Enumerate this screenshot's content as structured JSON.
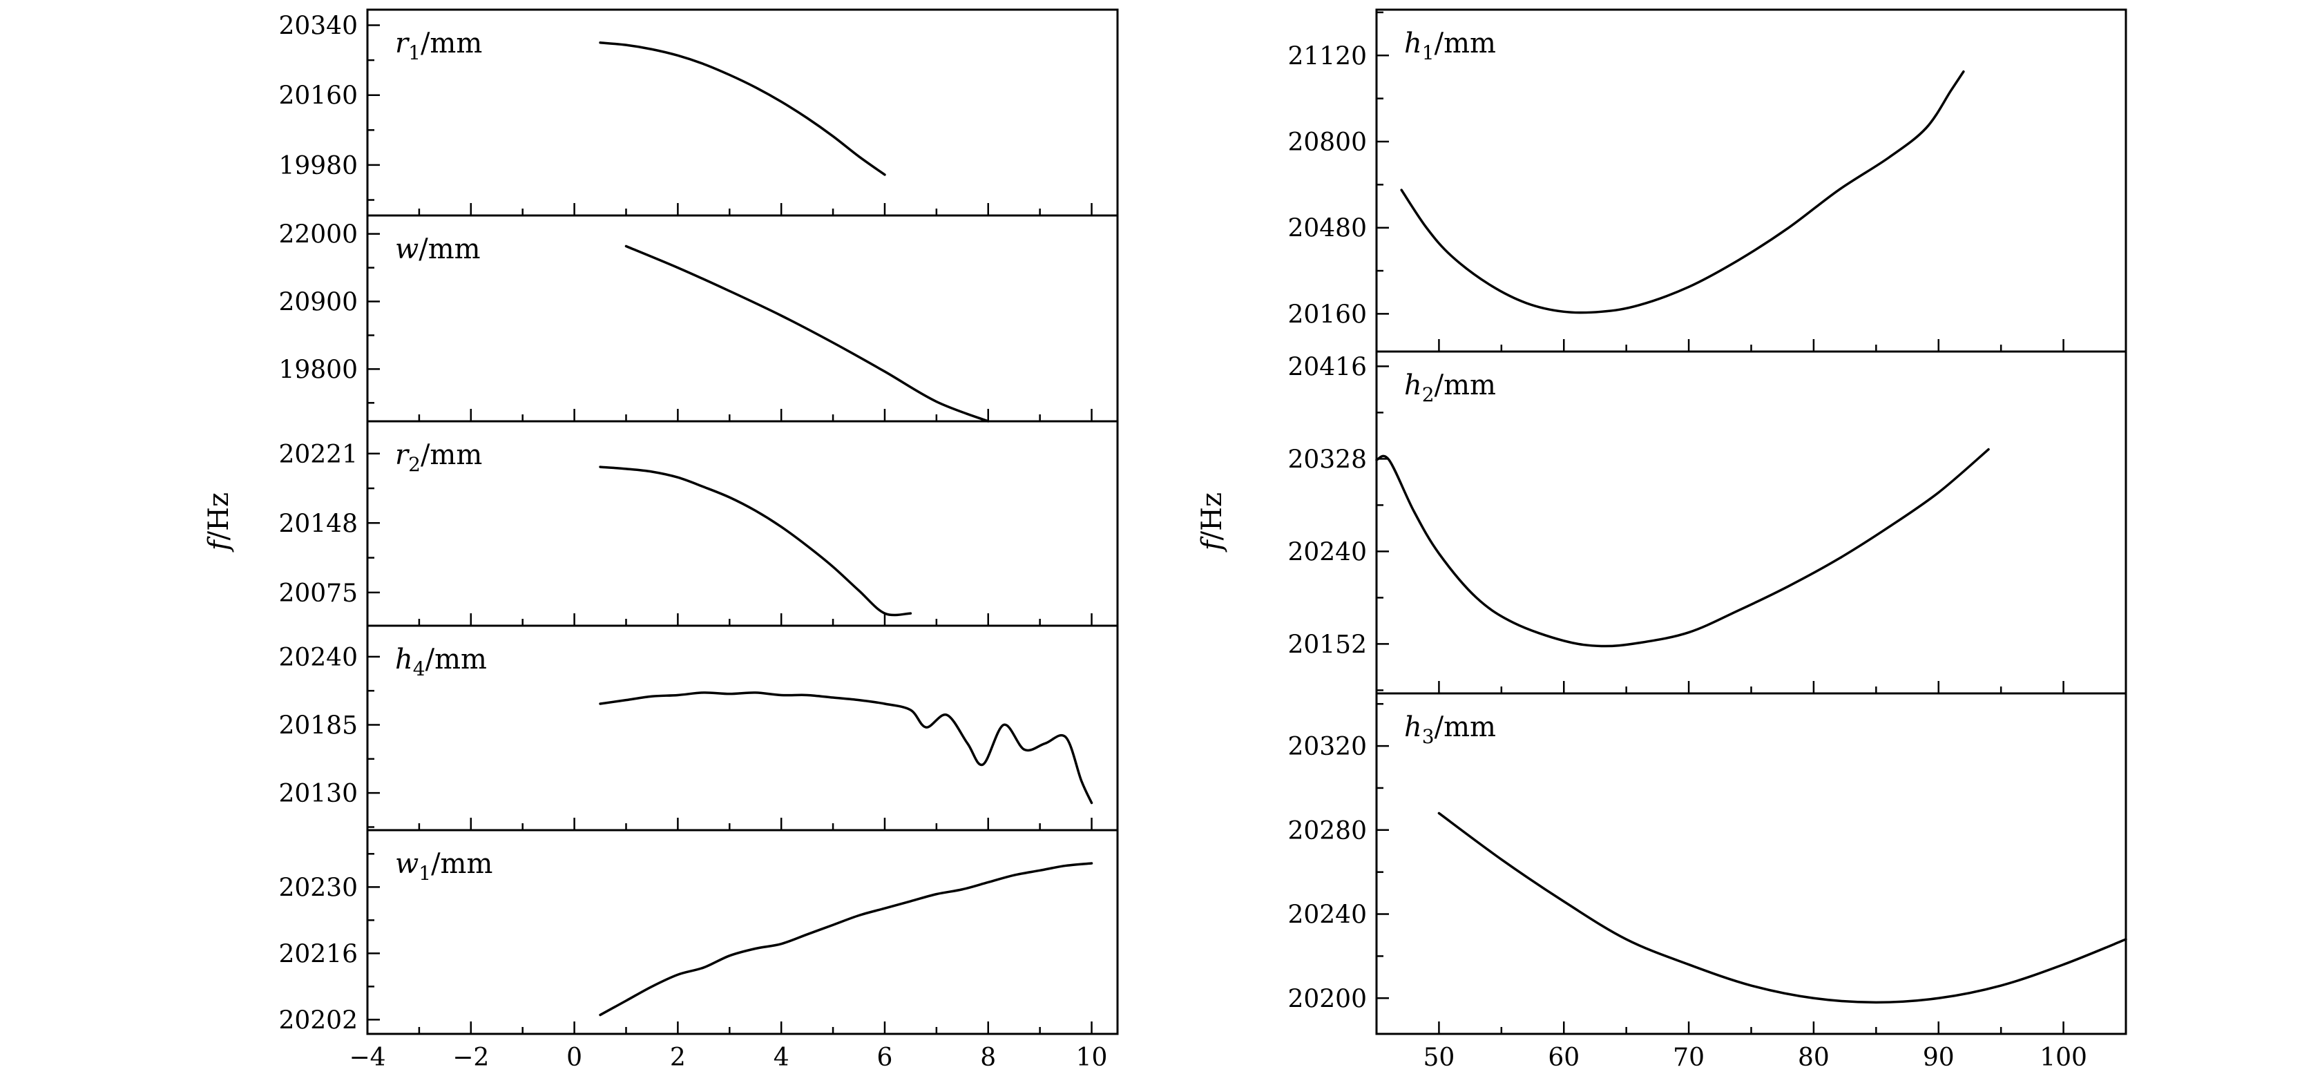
{
  "chart_data": [
    {
      "type": "line",
      "name": "r1",
      "label_symbol": "r",
      "label_sub": "1",
      "label_unit": "/mm",
      "xlim": [
        -4,
        10.5
      ],
      "ylim": [
        19850,
        20380
      ],
      "yticks": [
        19980,
        20160,
        20340
      ],
      "ytick_labels": [
        "19980",
        "20160",
        "20340"
      ],
      "x": [
        0.5,
        1,
        1.5,
        2,
        2.5,
        3,
        3.5,
        4,
        4.5,
        5,
        5.5,
        6
      ],
      "y": [
        20295,
        20289,
        20278,
        20262,
        20240,
        20212,
        20180,
        20143,
        20101,
        20054,
        20002,
        19955
      ]
    },
    {
      "type": "line",
      "name": "w",
      "label_symbol": "w",
      "label_sub": "",
      "label_unit": "/mm",
      "xlim": [
        -4,
        10.5
      ],
      "ylim": [
        18950,
        22300
      ],
      "yticks": [
        19800,
        20900,
        22000
      ],
      "ytick_labels": [
        "19800",
        "20900",
        "22000"
      ],
      "x": [
        1,
        2,
        3,
        4,
        5,
        6,
        7,
        8
      ],
      "y": [
        21800,
        21450,
        21070,
        20670,
        20230,
        19760,
        19270,
        18950
      ]
    },
    {
      "type": "line",
      "name": "r2",
      "label_symbol": "r",
      "label_sub": "2",
      "label_unit": "/mm",
      "xlim": [
        -4,
        10.5
      ],
      "ylim": [
        20040,
        20255
      ],
      "yticks": [
        20075,
        20148,
        20221
      ],
      "ytick_labels": [
        "20075",
        "20148",
        "20221"
      ],
      "x": [
        0.5,
        1,
        1.5,
        2,
        2.5,
        3,
        3.5,
        4,
        4.5,
        5,
        5.5,
        6,
        6.5
      ],
      "y": [
        20207,
        20205,
        20202,
        20196,
        20186,
        20175,
        20161,
        20144,
        20124,
        20102,
        20077,
        20053,
        20053
      ]
    },
    {
      "type": "line",
      "name": "h4",
      "label_symbol": "h",
      "label_sub": "4",
      "label_unit": "/mm",
      "xlim": [
        -4,
        10.5
      ],
      "ylim": [
        20100,
        20265
      ],
      "yticks": [
        20130,
        20185,
        20240
      ],
      "ytick_labels": [
        "20130",
        "20185",
        "20240"
      ],
      "x": [
        0.5,
        1,
        1.5,
        2,
        2.5,
        3,
        3.5,
        4,
        4.5,
        5,
        5.5,
        6,
        6.5,
        6.8,
        7.2,
        7.6,
        7.9,
        8.3,
        8.7,
        9.1,
        9.5,
        9.8,
        10
      ],
      "y": [
        20202,
        20205,
        20208,
        20209,
        20211,
        20210,
        20211,
        20209,
        20209,
        20207,
        20205,
        20202,
        20197,
        20183,
        20193,
        20170,
        20153,
        20185,
        20165,
        20170,
        20175,
        20140,
        20122
      ]
    },
    {
      "type": "line",
      "name": "w1",
      "label_symbol": "w",
      "label_sub": "1",
      "label_unit": "/mm",
      "xlim": [
        -4,
        10.5
      ],
      "ylim": [
        20199,
        20242
      ],
      "yticks": [
        20202,
        20216,
        20230
      ],
      "ytick_labels": [
        "20202",
        "20216",
        "20230"
      ],
      "xticks": [
        -4,
        -2,
        0,
        2,
        4,
        6,
        8,
        10
      ],
      "xtick_labels": [
        "−4",
        "−2",
        "0",
        "2",
        "4",
        "6",
        "8",
        "10"
      ],
      "x": [
        0.5,
        1,
        1.5,
        2,
        2.5,
        3,
        3.5,
        4,
        4.5,
        5,
        5.5,
        6,
        6.5,
        7,
        7.5,
        8,
        8.5,
        9,
        9.5,
        10
      ],
      "y": [
        20203,
        20206,
        20209,
        20211.5,
        20213,
        20215.5,
        20217,
        20218,
        20220,
        20222,
        20224,
        20225.5,
        20227,
        20228.5,
        20229.5,
        20231,
        20232.5,
        20233.5,
        20234.5,
        20235
      ]
    },
    {
      "type": "line",
      "name": "h1",
      "label_symbol": "h",
      "label_sub": "1",
      "label_unit": "/mm",
      "xlim": [
        45,
        105
      ],
      "ylim": [
        20020,
        21290
      ],
      "yticks": [
        20160,
        20480,
        20800,
        21120
      ],
      "ytick_labels": [
        "20160",
        "20480",
        "20800",
        "21120"
      ],
      "x": [
        47,
        49,
        51,
        54,
        57,
        60,
        63,
        66,
        70,
        74,
        78,
        82,
        86,
        89,
        91,
        92
      ],
      "y": [
        20620,
        20480,
        20375,
        20270,
        20200,
        20168,
        20168,
        20192,
        20260,
        20360,
        20480,
        20620,
        20740,
        20850,
        20990,
        21060
      ]
    },
    {
      "type": "line",
      "name": "h2",
      "label_symbol": "h",
      "label_sub": "2",
      "label_unit": "/mm",
      "xlim": [
        45,
        105
      ],
      "ylim": [
        20105,
        20430
      ],
      "yticks": [
        20152,
        20240,
        20328,
        20416
      ],
      "ytick_labels": [
        "20152",
        "20240",
        "20328",
        "20416"
      ],
      "x": [
        45,
        46,
        48,
        50,
        53,
        56,
        60,
        63,
        66,
        70,
        74,
        78,
        82,
        86,
        90,
        94
      ],
      "y": [
        20327,
        20327,
        20278,
        20238,
        20196,
        20172,
        20155,
        20150,
        20153,
        20163,
        20184,
        20207,
        20233,
        20263,
        20296,
        20337
      ]
    },
    {
      "type": "line",
      "name": "h3",
      "label_symbol": "h",
      "label_sub": "3",
      "label_unit": "/mm",
      "xlim": [
        45,
        105
      ],
      "ylim": [
        20183,
        20345
      ],
      "yticks": [
        20200,
        20240,
        20280,
        20320
      ],
      "ytick_labels": [
        "20200",
        "20240",
        "20280",
        "20320"
      ],
      "xticks": [
        50,
        60,
        70,
        80,
        90,
        100
      ],
      "xtick_labels": [
        "50",
        "60",
        "70",
        "80",
        "90",
        "100"
      ],
      "x": [
        50,
        55,
        60,
        65,
        70,
        75,
        80,
        85,
        90,
        95,
        100,
        105
      ],
      "y": [
        20288,
        20266,
        20246,
        20228,
        20216,
        20206,
        20200,
        20198,
        20200,
        20206,
        20216,
        20228
      ]
    }
  ],
  "left_axis_title": {
    "symbol": "f",
    "unit": "/Hz"
  },
  "right_axis_title": {
    "symbol": "f",
    "unit": "/Hz"
  }
}
